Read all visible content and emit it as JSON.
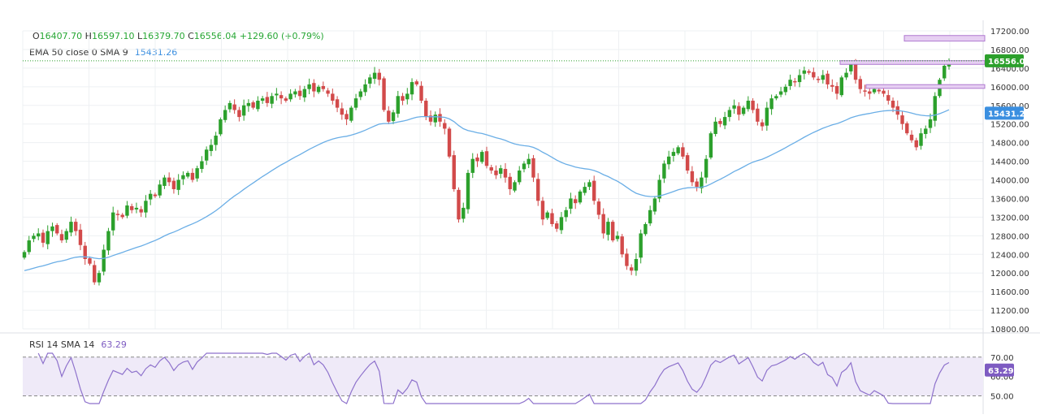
{
  "ohlc_legend": {
    "o_label": "O",
    "o": "16407.70",
    "h_label": "H",
    "h": "16597.10",
    "l_label": "L",
    "l": "16379.70",
    "c_label": "C",
    "c": "16556.04",
    "change": "+129.60 (+0.79%)"
  },
  "indicator_legend": {
    "label": "EMA 50 close 0 SMA 9",
    "value": "15431.26"
  },
  "rsi_legend": {
    "label": "RSI 14 SMA 14",
    "value": "63.29"
  },
  "colors": {
    "up": "#2ca02c",
    "down": "#d24a4a",
    "ema": "#6aaee6",
    "rsi": "#8e72cc",
    "rsi_band": "#efeaf8",
    "zone_fill": "#e6cff2",
    "zone_stroke": "#b07ad0",
    "price_tag": "#2ca02c",
    "ema_tag": "#3b8fe0",
    "rsi_tag": "#7e5cc2"
  },
  "chart_data": [
    {
      "type": "candlestick",
      "title": "",
      "ylim": [
        10800,
        17200
      ],
      "y_ticks": [
        "17200.00",
        "16800.00",
        "16400.00",
        "16000.00",
        "15600.00",
        "15200.00",
        "14800.00",
        "14400.00",
        "14000.00",
        "13600.00",
        "13200.00",
        "12800.00",
        "12400.00",
        "12000.00",
        "11600.00",
        "11200.00",
        "10800.00"
      ],
      "last_price": "16556.04",
      "ema_last": "15431.26",
      "closes": [
        12450,
        12700,
        12800,
        12850,
        12650,
        12900,
        13000,
        12850,
        12700,
        12900,
        13100,
        12900,
        12600,
        12300,
        12200,
        11800,
        12000,
        12500,
        12900,
        13300,
        13250,
        13200,
        13450,
        13350,
        13400,
        13300,
        13550,
        13700,
        13650,
        13900,
        14050,
        13950,
        13800,
        14000,
        14100,
        14150,
        14000,
        14250,
        14400,
        14650,
        14750,
        14950,
        15300,
        15500,
        15650,
        15500,
        15350,
        15600,
        15650,
        15550,
        15700,
        15750,
        15650,
        15800,
        15850,
        15750,
        15700,
        15850,
        15900,
        15800,
        15950,
        16050,
        15900,
        16000,
        15950,
        15850,
        15700,
        15550,
        15400,
        15300,
        15550,
        15750,
        15900,
        16050,
        16200,
        16300,
        16150,
        15500,
        15250,
        15450,
        15800,
        15700,
        15850,
        16100,
        16050,
        15700,
        15350,
        15250,
        15400,
        15250,
        15100,
        14500,
        13800,
        13150,
        13400,
        14150,
        14450,
        14400,
        14600,
        14300,
        14200,
        14100,
        14250,
        14050,
        13800,
        13950,
        14200,
        14350,
        14450,
        14050,
        13550,
        13150,
        13300,
        13050,
        12950,
        13200,
        13350,
        13600,
        13500,
        13750,
        13850,
        13950,
        13550,
        13250,
        12850,
        13100,
        12700,
        12800,
        12400,
        12150,
        12050,
        12300,
        12850,
        13050,
        13350,
        13600,
        14000,
        14350,
        14500,
        14600,
        14700,
        14500,
        14200,
        13950,
        13850,
        14050,
        14450,
        15000,
        15250,
        15200,
        15350,
        15500,
        15600,
        15400,
        15550,
        15700,
        15500,
        15250,
        15150,
        15550,
        15750,
        15800,
        15900,
        16000,
        16150,
        16100,
        16250,
        16350,
        16300,
        16200,
        16150,
        16250,
        16050,
        16000,
        15850,
        16200,
        16300,
        16500,
        16150,
        15950,
        15900,
        15850,
        15950,
        15900,
        15850,
        15700,
        15550,
        15400,
        15200,
        15000,
        14850,
        14700,
        15000,
        15100,
        15300,
        15800,
        16150,
        16450,
        16556
      ]
    },
    {
      "type": "line",
      "name": "RSI 14",
      "ylim": [
        46,
        72
      ],
      "y_ticks": [
        "70.00",
        "60.00",
        "50.00"
      ],
      "levels": [
        70,
        50
      ],
      "last_value": "63.29"
    }
  ]
}
